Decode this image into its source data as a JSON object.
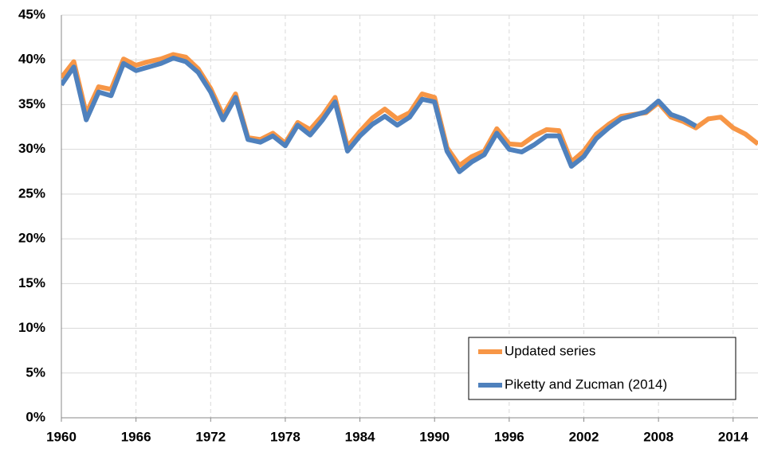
{
  "chart_data": {
    "type": "line",
    "x": [
      1960,
      1961,
      1962,
      1963,
      1964,
      1965,
      1966,
      1967,
      1968,
      1969,
      1970,
      1971,
      1972,
      1973,
      1974,
      1975,
      1976,
      1977,
      1978,
      1979,
      1980,
      1981,
      1982,
      1983,
      1984,
      1985,
      1986,
      1987,
      1988,
      1989,
      1990,
      1991,
      1992,
      1993,
      1994,
      1995,
      1996,
      1997,
      1998,
      1999,
      2000,
      2001,
      2002,
      2003,
      2004,
      2005,
      2006,
      2007,
      2008,
      2009,
      2010,
      2011,
      2012,
      2013,
      2014,
      2015,
      2016
    ],
    "series": [
      {
        "name": "Updated series",
        "color": "#f79646",
        "values": [
          38,
          39.8,
          34,
          37,
          36.7,
          40.1,
          39.4,
          39.8,
          40.1,
          40.6,
          40.3,
          39,
          36.8,
          33.8,
          36.2,
          31.3,
          31.1,
          31.8,
          30.7,
          33,
          32.2,
          33.8,
          35.8,
          30.3,
          32,
          33.5,
          34.5,
          33.4,
          34.1,
          36.2,
          35.8,
          30.2,
          28.2,
          29.2,
          29.8,
          32.3,
          30.6,
          30.5,
          31.5,
          32.2,
          32.1,
          28.6,
          29.8,
          31.7,
          32.8,
          33.7,
          33.9,
          34.1,
          35.2,
          33.6,
          33.1,
          32.4,
          33.4,
          33.6,
          32.4,
          31.7,
          30.6
        ]
      },
      {
        "name": "Piketty and Zucman (2014)",
        "color": "#4f81bd",
        "values": [
          37.2,
          39.2,
          33.3,
          36.4,
          36,
          39.6,
          38.8,
          39.2,
          39.6,
          40.2,
          39.8,
          38.6,
          36.4,
          33.3,
          35.8,
          31.1,
          30.8,
          31.5,
          30.4,
          32.7,
          31.6,
          33.3,
          35.3,
          29.8,
          31.5,
          32.8,
          33.7,
          32.7,
          33.6,
          35.6,
          35.3,
          29.8,
          27.5,
          28.6,
          29.4,
          31.8,
          30,
          29.7,
          30.5,
          31.5,
          31.5,
          28.1,
          29.2,
          31.2,
          32.4,
          33.4,
          33.8,
          34.2,
          35.4,
          33.9,
          33.4,
          32.6,
          null,
          null,
          null,
          null,
          null
        ]
      }
    ],
    "xlim": [
      1960,
      2016
    ],
    "xticks": [
      1960,
      1966,
      1972,
      1978,
      1984,
      1990,
      1996,
      2002,
      2008,
      2014
    ],
    "ylim": [
      0,
      45
    ],
    "yticks": [
      {
        "value": 0,
        "label": "0%"
      },
      {
        "value": 5,
        "label": "5%"
      },
      {
        "value": 10,
        "label": "10%"
      },
      {
        "value": 15,
        "label": "15%"
      },
      {
        "value": 20,
        "label": "20%"
      },
      {
        "value": 25,
        "label": "25%"
      },
      {
        "value": 30,
        "label": "30%"
      },
      {
        "value": 35,
        "label": "35%"
      },
      {
        "value": 40,
        "label": "40%"
      },
      {
        "value": 45,
        "label": "45%"
      }
    ],
    "grid": true,
    "legend": "lower right"
  }
}
